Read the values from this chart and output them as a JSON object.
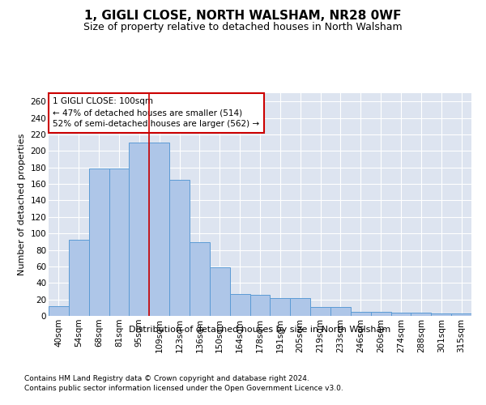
{
  "title": "1, GIGLI CLOSE, NORTH WALSHAM, NR28 0WF",
  "subtitle": "Size of property relative to detached houses in North Walsham",
  "xlabel": "Distribution of detached houses by size in North Walsham",
  "ylabel": "Number of detached properties",
  "categories": [
    "40sqm",
    "54sqm",
    "68sqm",
    "81sqm",
    "95sqm",
    "109sqm",
    "123sqm",
    "136sqm",
    "150sqm",
    "164sqm",
    "178sqm",
    "191sqm",
    "205sqm",
    "219sqm",
    "233sqm",
    "246sqm",
    "260sqm",
    "274sqm",
    "288sqm",
    "301sqm",
    "315sqm"
  ],
  "values": [
    12,
    92,
    179,
    179,
    210,
    210,
    165,
    89,
    59,
    27,
    26,
    22,
    22,
    11,
    11,
    5,
    5,
    4,
    4,
    3,
    3
  ],
  "bar_color": "#aec6e8",
  "bar_edge_color": "#5b9bd5",
  "vline_index": 4.5,
  "annotation_text": "1 GIGLI CLOSE: 100sqm\n← 47% of detached houses are smaller (514)\n52% of semi-detached houses are larger (562) →",
  "annotation_box_color": "#ffffff",
  "annotation_box_edge": "#cc0000",
  "vline_color": "#cc0000",
  "ylim": [
    0,
    270
  ],
  "yticks": [
    0,
    20,
    40,
    60,
    80,
    100,
    120,
    140,
    160,
    180,
    200,
    220,
    240,
    260
  ],
  "background_color": "#dde4f0",
  "footer_line1": "Contains HM Land Registry data © Crown copyright and database right 2024.",
  "footer_line2": "Contains public sector information licensed under the Open Government Licence v3.0.",
  "title_fontsize": 11,
  "subtitle_fontsize": 9,
  "xlabel_fontsize": 8,
  "ylabel_fontsize": 8,
  "tick_fontsize": 7.5,
  "footer_fontsize": 6.5
}
